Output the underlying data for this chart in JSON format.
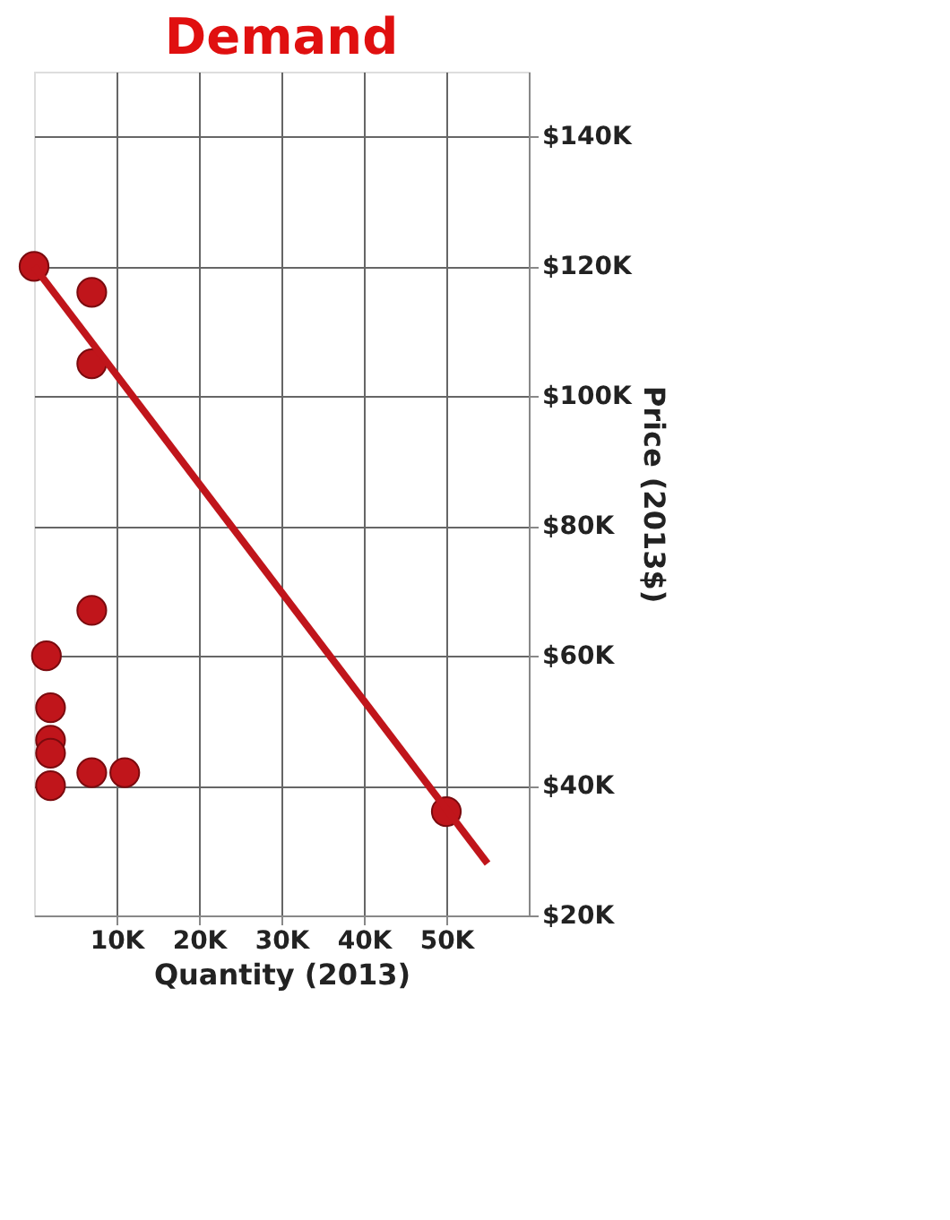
{
  "chart_data": {
    "type": "scatter",
    "title": "Demand",
    "xlabel": "Quantity (2013)",
    "ylabel": "Price (2013$)",
    "xlim": [
      0,
      60000
    ],
    "ylim": [
      20000,
      150000
    ],
    "xticks": [
      {
        "value": 10000,
        "label": "10K"
      },
      {
        "value": 20000,
        "label": "20K"
      },
      {
        "value": 30000,
        "label": "30K"
      },
      {
        "value": 40000,
        "label": "40K"
      },
      {
        "value": 50000,
        "label": "50K"
      }
    ],
    "yticks": [
      {
        "value": 20000,
        "label": "$20K"
      },
      {
        "value": 40000,
        "label": "$40K"
      },
      {
        "value": 60000,
        "label": "$60K"
      },
      {
        "value": 80000,
        "label": "$80K"
      },
      {
        "value": 100000,
        "label": "$100K"
      },
      {
        "value": 120000,
        "label": "$120K"
      },
      {
        "value": 140000,
        "label": "$140K"
      }
    ],
    "grid": true,
    "series": [
      {
        "type": "scatter",
        "color": "#c0151b",
        "marker": "circle",
        "x": [
          0,
          7000,
          7000,
          7000,
          1500,
          2000,
          2000,
          2000,
          2000,
          7000,
          11000,
          50000
        ],
        "values": [
          120000,
          116000,
          105000,
          67000,
          60000,
          52000,
          47000,
          45000,
          40000,
          42000,
          42000,
          36000
        ]
      },
      {
        "type": "line",
        "color": "#c0151b",
        "marker": "none",
        "line_style": "solid",
        "x": [
          0,
          55000
        ],
        "values": [
          120000,
          28000
        ]
      }
    ]
  }
}
